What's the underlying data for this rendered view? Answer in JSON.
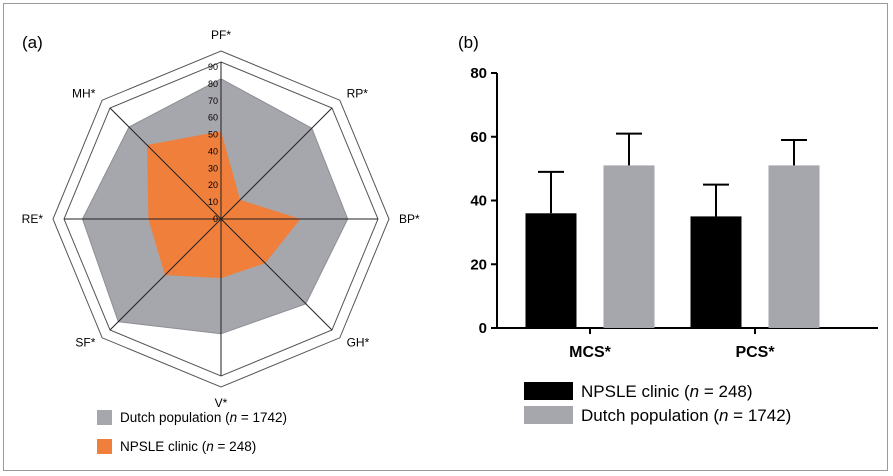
{
  "chart_data": [
    {
      "type": "radar",
      "panel_label": "(a)",
      "axes": [
        "PF*",
        "RP*",
        "BP*",
        "GH*",
        "V*",
        "SF*",
        "RE*",
        "MH*"
      ],
      "ticks": [
        0,
        10,
        20,
        30,
        40,
        50,
        60,
        70,
        80,
        90
      ],
      "rmax": 90,
      "series": [
        {
          "name": "Dutch population",
          "n_label": "n",
          "n_value": "= 1742",
          "values": [
            83,
            76,
            75,
            71,
            68,
            86,
            82,
            77
          ],
          "color": "#a6a6ad"
        },
        {
          "name": "NPSLE clinic",
          "n_label": "n",
          "n_value": "= 248",
          "values": [
            52,
            16,
            47,
            37,
            35,
            47,
            43,
            62
          ],
          "color": "#f07f3c"
        }
      ]
    },
    {
      "type": "bar",
      "panel_label": "(b)",
      "categories": [
        "MCS*",
        "PCS*"
      ],
      "ylim": [
        0,
        80
      ],
      "yticks": [
        0,
        20,
        40,
        60,
        80
      ],
      "series": [
        {
          "name": "NPSLE clinic",
          "n_label": "n",
          "n_value": "= 248",
          "values": [
            36,
            35
          ],
          "errors": [
            13,
            10
          ],
          "color": "#000000"
        },
        {
          "name": "Dutch population",
          "n_label": "n",
          "n_value": "= 1742",
          "values": [
            51,
            51
          ],
          "errors": [
            10,
            8
          ],
          "color": "#a6a6ad"
        }
      ]
    }
  ]
}
